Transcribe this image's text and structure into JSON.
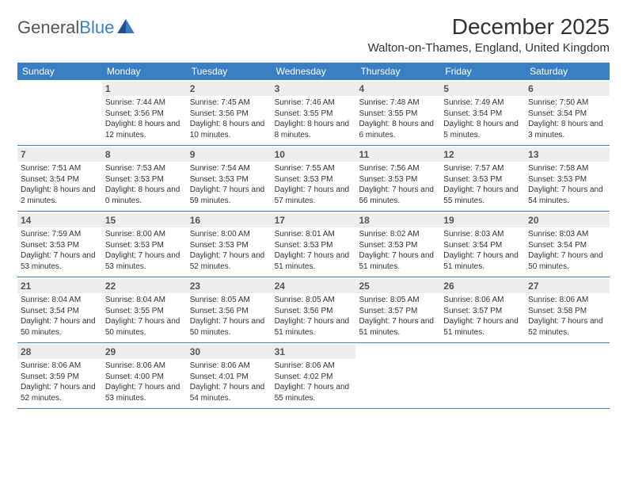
{
  "logo": {
    "text_gray": "General",
    "text_blue": "Blue"
  },
  "title": "December 2025",
  "location": "Walton-on-Thames, England, United Kingdom",
  "colors": {
    "header_bg": "#3a7fc4",
    "daynum_bg": "#ededed",
    "body_text": "#333333",
    "logo_gray": "#555555",
    "logo_blue": "#3a7fc4",
    "page_bg": "#ffffff"
  },
  "typography": {
    "month_title_pt": 28,
    "location_pt": 15,
    "day_header_pt": 12,
    "day_num_pt": 12,
    "day_info_pt": 10,
    "font_family": "Arial"
  },
  "day_headers": [
    "Sunday",
    "Monday",
    "Tuesday",
    "Wednesday",
    "Thursday",
    "Friday",
    "Saturday"
  ],
  "weeks": [
    [
      {
        "n": "",
        "sr": "",
        "ss": "",
        "dl": ""
      },
      {
        "n": "1",
        "sr": "Sunrise: 7:44 AM",
        "ss": "Sunset: 3:56 PM",
        "dl": "Daylight: 8 hours and 12 minutes."
      },
      {
        "n": "2",
        "sr": "Sunrise: 7:45 AM",
        "ss": "Sunset: 3:56 PM",
        "dl": "Daylight: 8 hours and 10 minutes."
      },
      {
        "n": "3",
        "sr": "Sunrise: 7:46 AM",
        "ss": "Sunset: 3:55 PM",
        "dl": "Daylight: 8 hours and 8 minutes."
      },
      {
        "n": "4",
        "sr": "Sunrise: 7:48 AM",
        "ss": "Sunset: 3:55 PM",
        "dl": "Daylight: 8 hours and 6 minutes."
      },
      {
        "n": "5",
        "sr": "Sunrise: 7:49 AM",
        "ss": "Sunset: 3:54 PM",
        "dl": "Daylight: 8 hours and 5 minutes."
      },
      {
        "n": "6",
        "sr": "Sunrise: 7:50 AM",
        "ss": "Sunset: 3:54 PM",
        "dl": "Daylight: 8 hours and 3 minutes."
      }
    ],
    [
      {
        "n": "7",
        "sr": "Sunrise: 7:51 AM",
        "ss": "Sunset: 3:54 PM",
        "dl": "Daylight: 8 hours and 2 minutes."
      },
      {
        "n": "8",
        "sr": "Sunrise: 7:53 AM",
        "ss": "Sunset: 3:53 PM",
        "dl": "Daylight: 8 hours and 0 minutes."
      },
      {
        "n": "9",
        "sr": "Sunrise: 7:54 AM",
        "ss": "Sunset: 3:53 PM",
        "dl": "Daylight: 7 hours and 59 minutes."
      },
      {
        "n": "10",
        "sr": "Sunrise: 7:55 AM",
        "ss": "Sunset: 3:53 PM",
        "dl": "Daylight: 7 hours and 57 minutes."
      },
      {
        "n": "11",
        "sr": "Sunrise: 7:56 AM",
        "ss": "Sunset: 3:53 PM",
        "dl": "Daylight: 7 hours and 56 minutes."
      },
      {
        "n": "12",
        "sr": "Sunrise: 7:57 AM",
        "ss": "Sunset: 3:53 PM",
        "dl": "Daylight: 7 hours and 55 minutes."
      },
      {
        "n": "13",
        "sr": "Sunrise: 7:58 AM",
        "ss": "Sunset: 3:53 PM",
        "dl": "Daylight: 7 hours and 54 minutes."
      }
    ],
    [
      {
        "n": "14",
        "sr": "Sunrise: 7:59 AM",
        "ss": "Sunset: 3:53 PM",
        "dl": "Daylight: 7 hours and 53 minutes."
      },
      {
        "n": "15",
        "sr": "Sunrise: 8:00 AM",
        "ss": "Sunset: 3:53 PM",
        "dl": "Daylight: 7 hours and 53 minutes."
      },
      {
        "n": "16",
        "sr": "Sunrise: 8:00 AM",
        "ss": "Sunset: 3:53 PM",
        "dl": "Daylight: 7 hours and 52 minutes."
      },
      {
        "n": "17",
        "sr": "Sunrise: 8:01 AM",
        "ss": "Sunset: 3:53 PM",
        "dl": "Daylight: 7 hours and 51 minutes."
      },
      {
        "n": "18",
        "sr": "Sunrise: 8:02 AM",
        "ss": "Sunset: 3:53 PM",
        "dl": "Daylight: 7 hours and 51 minutes."
      },
      {
        "n": "19",
        "sr": "Sunrise: 8:03 AM",
        "ss": "Sunset: 3:54 PM",
        "dl": "Daylight: 7 hours and 51 minutes."
      },
      {
        "n": "20",
        "sr": "Sunrise: 8:03 AM",
        "ss": "Sunset: 3:54 PM",
        "dl": "Daylight: 7 hours and 50 minutes."
      }
    ],
    [
      {
        "n": "21",
        "sr": "Sunrise: 8:04 AM",
        "ss": "Sunset: 3:54 PM",
        "dl": "Daylight: 7 hours and 50 minutes."
      },
      {
        "n": "22",
        "sr": "Sunrise: 8:04 AM",
        "ss": "Sunset: 3:55 PM",
        "dl": "Daylight: 7 hours and 50 minutes."
      },
      {
        "n": "23",
        "sr": "Sunrise: 8:05 AM",
        "ss": "Sunset: 3:56 PM",
        "dl": "Daylight: 7 hours and 50 minutes."
      },
      {
        "n": "24",
        "sr": "Sunrise: 8:05 AM",
        "ss": "Sunset: 3:56 PM",
        "dl": "Daylight: 7 hours and 51 minutes."
      },
      {
        "n": "25",
        "sr": "Sunrise: 8:05 AM",
        "ss": "Sunset: 3:57 PM",
        "dl": "Daylight: 7 hours and 51 minutes."
      },
      {
        "n": "26",
        "sr": "Sunrise: 8:06 AM",
        "ss": "Sunset: 3:57 PM",
        "dl": "Daylight: 7 hours and 51 minutes."
      },
      {
        "n": "27",
        "sr": "Sunrise: 8:06 AM",
        "ss": "Sunset: 3:58 PM",
        "dl": "Daylight: 7 hours and 52 minutes."
      }
    ],
    [
      {
        "n": "28",
        "sr": "Sunrise: 8:06 AM",
        "ss": "Sunset: 3:59 PM",
        "dl": "Daylight: 7 hours and 52 minutes."
      },
      {
        "n": "29",
        "sr": "Sunrise: 8:06 AM",
        "ss": "Sunset: 4:00 PM",
        "dl": "Daylight: 7 hours and 53 minutes."
      },
      {
        "n": "30",
        "sr": "Sunrise: 8:06 AM",
        "ss": "Sunset: 4:01 PM",
        "dl": "Daylight: 7 hours and 54 minutes."
      },
      {
        "n": "31",
        "sr": "Sunrise: 8:06 AM",
        "ss": "Sunset: 4:02 PM",
        "dl": "Daylight: 7 hours and 55 minutes."
      },
      {
        "n": "",
        "sr": "",
        "ss": "",
        "dl": ""
      },
      {
        "n": "",
        "sr": "",
        "ss": "",
        "dl": ""
      },
      {
        "n": "",
        "sr": "",
        "ss": "",
        "dl": ""
      }
    ]
  ]
}
